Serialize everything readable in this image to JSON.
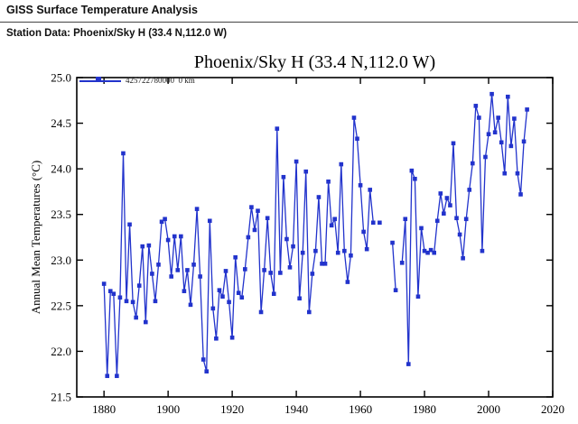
{
  "header": {
    "app_title": "GISS Surface Temperature Analysis",
    "station_line": "Station Data: Phoenix/Sky H (33.4 N,112.0 W)"
  },
  "chart": {
    "title": "Phoenix/Sky H (33.4 N,112.0 W)",
    "legend_label": "425722780000  0 km",
    "accent_color": "#2233cc"
  },
  "chart_data": {
    "type": "line",
    "title": "Phoenix/Sky H (33.4 N,112.0 W)",
    "xlabel": "",
    "ylabel": "Annual Mean Temperatures (°C)",
    "xlim": [
      1871.5,
      2020
    ],
    "ylim": [
      21.5,
      25.0
    ],
    "x_ticks": [
      1880,
      1900,
      1920,
      1940,
      1960,
      1980,
      2000,
      2020
    ],
    "y_ticks": [
      21.5,
      22.0,
      22.5,
      23.0,
      23.5,
      24.0,
      24.5,
      25.0
    ],
    "grid": false,
    "legend_position": "top-left-inside",
    "series": [
      {
        "name": "425722780000 0 km",
        "color": "#2233cc",
        "marker": "square",
        "points": [
          [
            1880,
            22.74
          ],
          [
            1881,
            21.73
          ],
          [
            1882,
            22.66
          ],
          [
            1883,
            22.63
          ],
          [
            1884,
            21.73
          ],
          [
            1885,
            22.59
          ],
          [
            1886,
            24.17
          ],
          [
            1887,
            22.55
          ],
          [
            1888,
            23.39
          ],
          [
            1889,
            22.54
          ],
          [
            1890,
            22.37
          ],
          [
            1891,
            22.72
          ],
          [
            1892,
            23.15
          ],
          [
            1893,
            22.32
          ],
          [
            1894,
            23.16
          ],
          [
            1895,
            22.85
          ],
          [
            1896,
            22.55
          ],
          [
            1897,
            22.95
          ],
          [
            1898,
            23.42
          ],
          [
            1899,
            23.45
          ],
          [
            1900,
            23.22
          ],
          [
            1901,
            22.82
          ],
          [
            1902,
            23.26
          ],
          [
            1903,
            22.89
          ],
          [
            1904,
            23.26
          ],
          [
            1905,
            22.66
          ],
          [
            1906,
            22.89
          ],
          [
            1907,
            22.51
          ],
          [
            1908,
            22.95
          ],
          [
            1909,
            23.56
          ],
          [
            1910,
            22.82
          ],
          [
            1911,
            21.91
          ],
          [
            1912,
            21.78
          ],
          [
            1913,
            23.43
          ],
          [
            1914,
            22.47
          ],
          [
            1915,
            22.14
          ],
          [
            1916,
            22.67
          ],
          [
            1917,
            22.6
          ],
          [
            1918,
            22.88
          ],
          [
            1919,
            22.54
          ],
          [
            1920,
            22.15
          ],
          [
            1921,
            23.03
          ],
          [
            1922,
            22.64
          ],
          [
            1923,
            22.59
          ],
          [
            1924,
            22.9
          ],
          [
            1925,
            23.25
          ],
          [
            1926,
            23.58
          ],
          [
            1927,
            23.33
          ],
          [
            1928,
            23.54
          ],
          [
            1929,
            22.43
          ],
          [
            1930,
            22.89
          ],
          [
            1931,
            23.46
          ],
          [
            1932,
            22.86
          ],
          [
            1933,
            22.63
          ],
          [
            1934,
            24.44
          ],
          [
            1935,
            22.86
          ],
          [
            1936,
            23.91
          ],
          [
            1937,
            23.23
          ],
          [
            1938,
            22.92
          ],
          [
            1939,
            23.15
          ],
          [
            1940,
            24.08
          ],
          [
            1941,
            22.58
          ],
          [
            1942,
            23.08
          ],
          [
            1943,
            23.97
          ],
          [
            1944,
            22.43
          ],
          [
            1945,
            22.85
          ],
          [
            1946,
            23.1
          ],
          [
            1947,
            23.69
          ],
          [
            1948,
            22.96
          ],
          [
            1949,
            22.96
          ],
          [
            1950,
            23.86
          ],
          [
            1951,
            23.38
          ],
          [
            1952,
            23.45
          ],
          [
            1953,
            23.08
          ],
          [
            1954,
            24.05
          ],
          [
            1955,
            23.1
          ],
          [
            1956,
            22.76
          ],
          [
            1957,
            23.05
          ],
          [
            1958,
            24.56
          ],
          [
            1959,
            24.33
          ],
          [
            1960,
            23.82
          ],
          [
            1961,
            23.31
          ],
          [
            1962,
            23.12
          ],
          [
            1963,
            23.77
          ],
          [
            1964,
            23.41
          ],
          [
            1966,
            23.41
          ],
          [
            1970,
            23.19
          ],
          [
            1971,
            22.67
          ],
          [
            1973,
            22.97
          ],
          [
            1974,
            23.45
          ],
          [
            1975,
            21.86
          ],
          [
            1976,
            23.98
          ],
          [
            1977,
            23.89
          ],
          [
            1978,
            22.6
          ],
          [
            1979,
            23.35
          ],
          [
            1980,
            23.1
          ],
          [
            1981,
            23.08
          ],
          [
            1982,
            23.11
          ],
          [
            1983,
            23.08
          ],
          [
            1984,
            23.43
          ],
          [
            1985,
            23.73
          ],
          [
            1986,
            23.51
          ],
          [
            1987,
            23.68
          ],
          [
            1988,
            23.6
          ],
          [
            1989,
            24.28
          ],
          [
            1990,
            23.46
          ],
          [
            1991,
            23.28
          ],
          [
            1992,
            23.02
          ],
          [
            1993,
            23.45
          ],
          [
            1994,
            23.77
          ],
          [
            1995,
            24.06
          ],
          [
            1996,
            24.69
          ],
          [
            1997,
            24.56
          ],
          [
            1998,
            23.1
          ],
          [
            1999,
            24.13
          ],
          [
            2000,
            24.38
          ],
          [
            2001,
            24.82
          ],
          [
            2002,
            24.4
          ],
          [
            2003,
            24.56
          ],
          [
            2004,
            24.29
          ],
          [
            2005,
            23.95
          ],
          [
            2006,
            24.79
          ],
          [
            2007,
            24.25
          ],
          [
            2008,
            24.55
          ],
          [
            2009,
            23.95
          ],
          [
            2010,
            23.72
          ],
          [
            2011,
            24.3
          ],
          [
            2012,
            24.65
          ]
        ]
      }
    ]
  }
}
